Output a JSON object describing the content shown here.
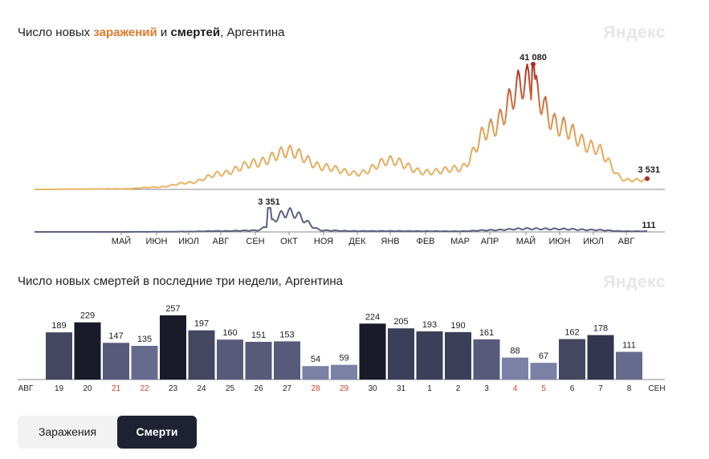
{
  "chart1": {
    "title": {
      "prefix": "Число новых ",
      "infections": "заражений",
      "middle": " и ",
      "deaths": "смертей",
      "suffix": ", Аргентина"
    },
    "logo": "Яндекс",
    "months": [
      "МАЙ",
      "ИЮН",
      "ИЮЛ",
      "АВГ",
      "СЕН",
      "ОКТ",
      "НОЯ",
      "ДЕК",
      "ЯНВ",
      "ФЕВ",
      "МАР",
      "АПР",
      "МАЙ",
      "ИЮН",
      "ИЮЛ",
      "АВГ"
    ],
    "peak_cases_label": "41 080",
    "last_cases_label": "3 531",
    "peak_deaths_label": "3 351",
    "last_deaths_label": "111"
  },
  "chart2": {
    "title": "Число новых смертей в последние три недели, Аргентина",
    "logo": "Яндекс",
    "month_start": "АВГ",
    "month_end": "СЕН"
  },
  "tabs": {
    "infections": "Заражения",
    "deaths": "Смерти"
  },
  "colors": {
    "cases_low": "#e8b566",
    "cases_high": "#b02a24",
    "deaths_line": "#5a6080",
    "weekend_label": "#d0432b"
  },
  "chart_data": [
    {
      "type": "line",
      "title": "Число новых заражений и смертей, Аргентина",
      "x": [
        "МАЙ",
        "ИЮН",
        "ИЮЛ",
        "АВГ",
        "СЕН",
        "ОКТ",
        "НОЯ",
        "ДЕК",
        "ЯНВ",
        "ФЕВ",
        "МАР",
        "АПР",
        "МАЙ",
        "ИЮН",
        "ИЮЛ",
        "АВГ"
      ],
      "series": [
        {
          "name": "заражений",
          "values": [
            200,
            800,
            2500,
            6000,
            10000,
            14500,
            8500,
            6000,
            11000,
            6500,
            8000,
            23000,
            41080,
            24000,
            16000,
            3531
          ]
        },
        {
          "name": "смертей",
          "values": [
            5,
            20,
            60,
            150,
            250,
            3351,
            250,
            150,
            150,
            120,
            110,
            300,
            550,
            500,
            350,
            111
          ]
        }
      ],
      "annotations": [
        {
          "label": "41 080",
          "series": "заражений"
        },
        {
          "label": "3 531",
          "series": "заражений"
        },
        {
          "label": "3 351",
          "series": "смертей"
        },
        {
          "label": "111",
          "series": "смертей"
        }
      ]
    },
    {
      "type": "bar",
      "title": "Число новых смертей в последние три недели, Аргентина",
      "categories": [
        "19",
        "20",
        "21",
        "22",
        "23",
        "24",
        "25",
        "26",
        "27",
        "28",
        "29",
        "30",
        "31",
        "1",
        "2",
        "3",
        "4",
        "5",
        "6",
        "7",
        "8"
      ],
      "values": [
        189,
        229,
        147,
        135,
        257,
        197,
        160,
        151,
        153,
        54,
        59,
        224,
        205,
        193,
        190,
        161,
        88,
        67,
        162,
        178,
        111
      ],
      "weekend": [
        false,
        false,
        true,
        true,
        false,
        false,
        false,
        false,
        false,
        true,
        true,
        false,
        false,
        false,
        false,
        false,
        true,
        true,
        false,
        false,
        false
      ],
      "bar_colors": [
        "#44475f",
        "#191b28",
        "#575a78",
        "#666b8e",
        "#191b28",
        "#44475f",
        "#575a78",
        "#575a78",
        "#575a78",
        "#7b81a4",
        "#7b81a4",
        "#191b28",
        "#3b3f58",
        "#3b3f58",
        "#3b3f58",
        "#575a78",
        "#7b81a4",
        "#7b81a4",
        "#44475f",
        "#33364e",
        "#666b8e"
      ],
      "ylim": [
        0,
        270
      ]
    }
  ]
}
